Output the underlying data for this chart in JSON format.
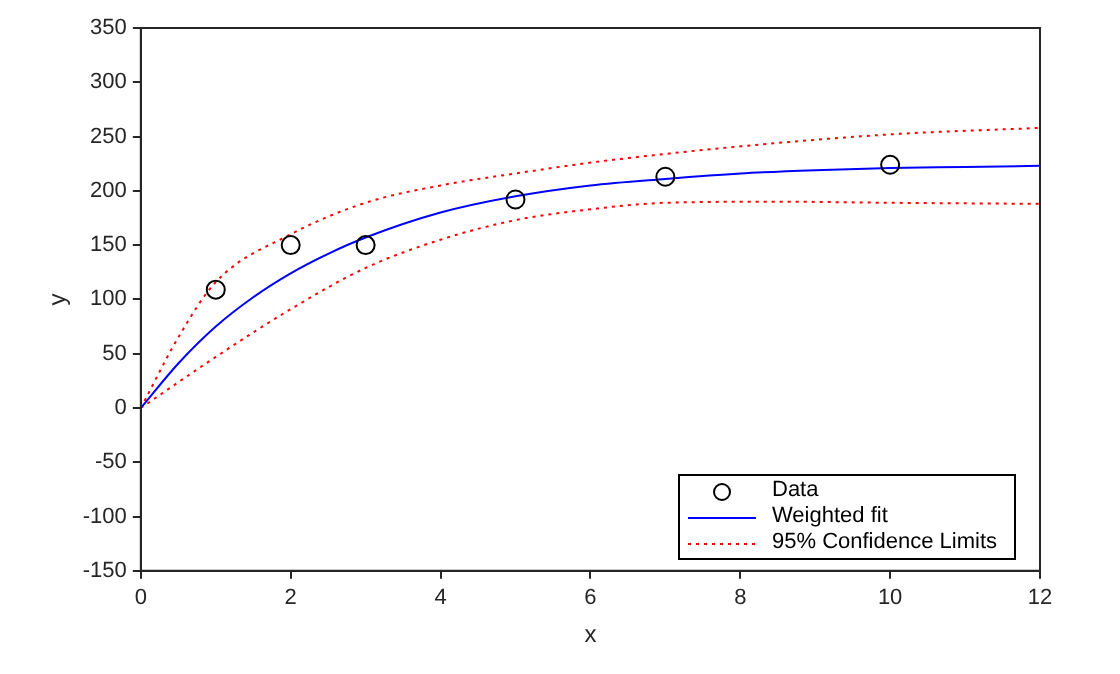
{
  "chart_data": {
    "type": "line",
    "xlabel": "x",
    "ylabel": "y",
    "xlim": [
      0,
      12
    ],
    "xticks": [
      0,
      2,
      4,
      6,
      8,
      10,
      12
    ],
    "ylim": [
      -150,
      350
    ],
    "yticks": [
      -150,
      -100,
      -50,
      0,
      50,
      100,
      150,
      200,
      250,
      300,
      350
    ],
    "grid": false,
    "legend": "bottom right",
    "series": [
      {
        "name": "Data",
        "type": "scatter",
        "marker": "circle",
        "color": "#000000",
        "x": [
          1,
          2,
          3,
          5,
          7,
          10
        ],
        "values": [
          109,
          150,
          150,
          192,
          213,
          224
        ]
      },
      {
        "name": "Weighted fit",
        "marker": "none",
        "line_style": "solid",
        "color": "#0000ff",
        "x": [
          0,
          0.5,
          1,
          1.5,
          2,
          2.5,
          3,
          4,
          5,
          6,
          7,
          8,
          9,
          10,
          11,
          12
        ],
        "values": [
          0,
          41,
          75,
          102,
          124,
          142,
          157,
          180,
          195,
          205,
          211,
          216,
          219,
          221,
          222,
          223
        ]
      },
      {
        "name": "95% Confidence Limits",
        "marker": "none",
        "line_style": "dotted",
        "color": "#ff0000",
        "x": [
          0,
          0.5,
          1,
          2,
          3,
          4,
          5,
          6,
          7,
          8,
          10,
          12
        ],
        "values": [
          0,
          65,
          116,
          160,
          189,
          205,
          216,
          226,
          234,
          241,
          252,
          258
        ]
      },
      {
        "marker": "none",
        "line_style": "dotted",
        "color": "#ff0000",
        "x": [
          0,
          1,
          2,
          3,
          4,
          5,
          6,
          7,
          8.5,
          10,
          12
        ],
        "values": [
          0,
          47,
          91,
          129,
          155,
          173,
          183,
          189,
          190,
          189,
          188
        ]
      }
    ]
  }
}
